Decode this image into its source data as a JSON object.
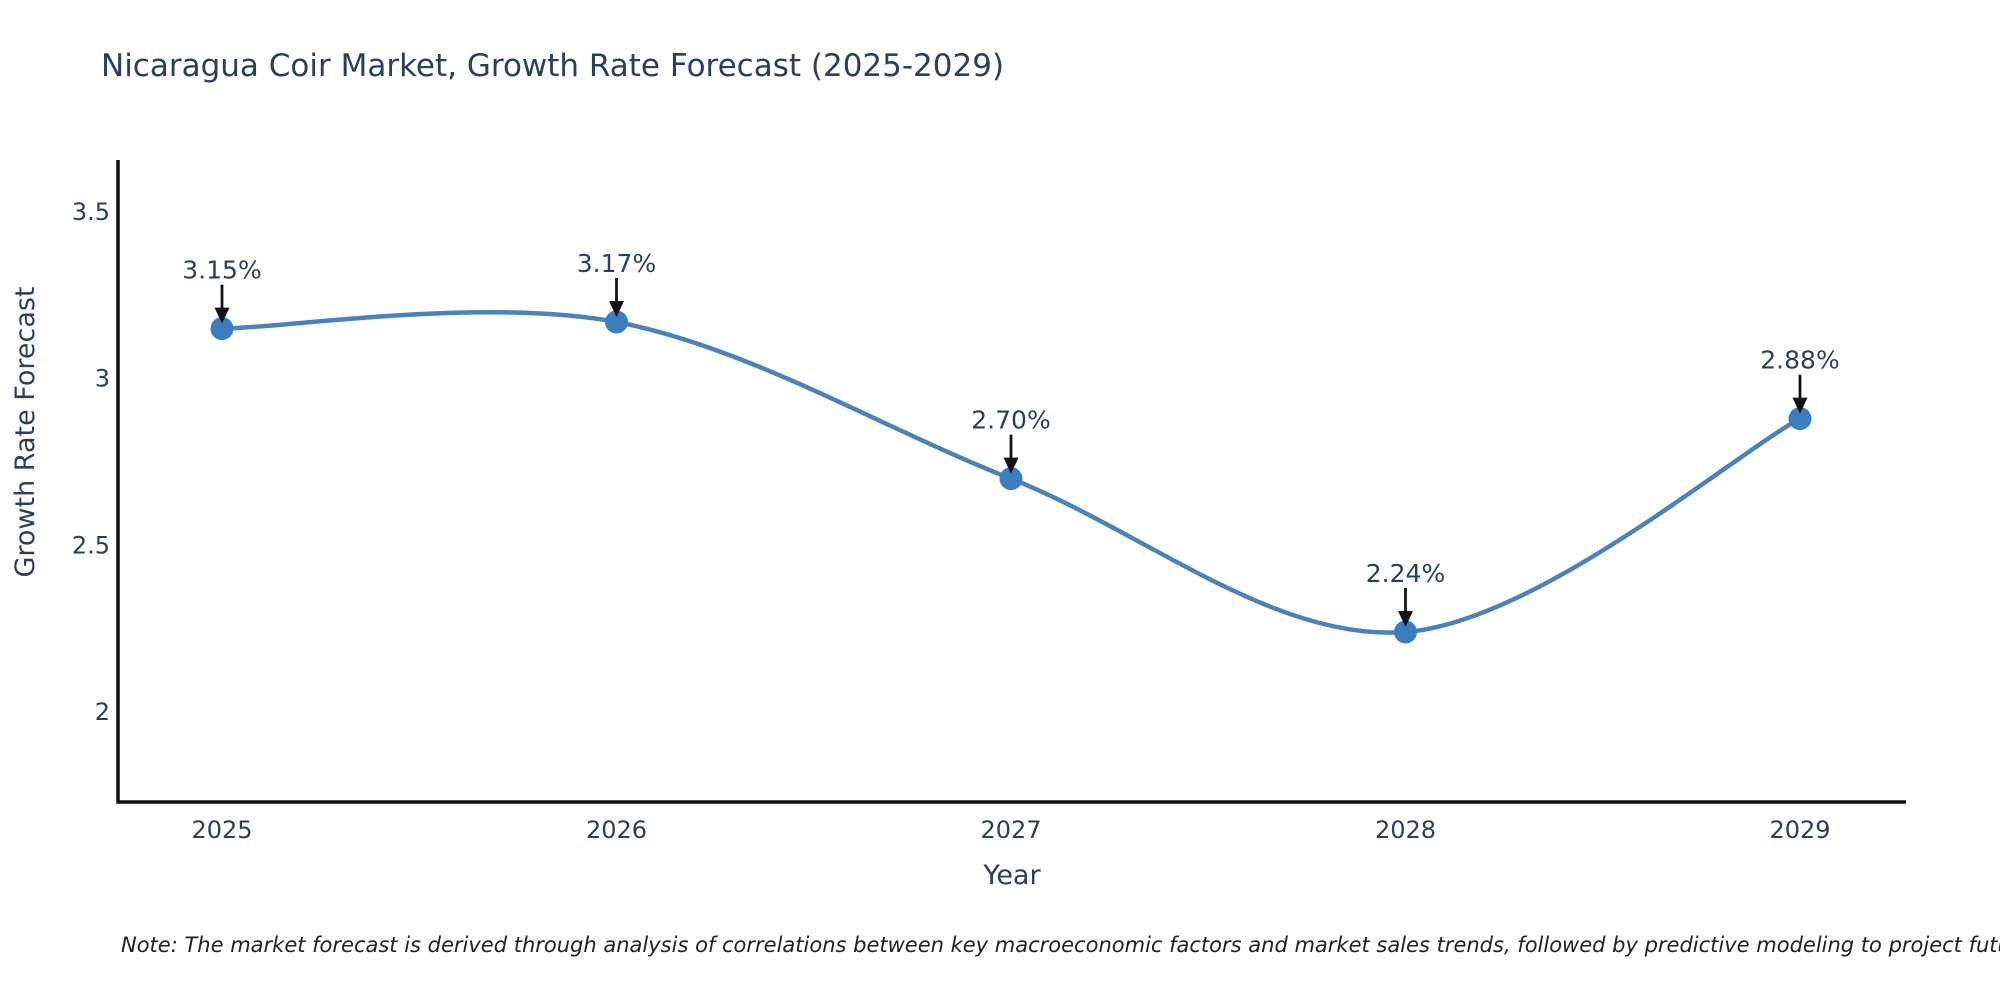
{
  "chart_data": {
    "type": "line",
    "title": "Nicaragua Coir Market, Growth Rate Forecast (2025-2029)",
    "xlabel": "Year",
    "ylabel": "Growth Rate Forecast",
    "categories": [
      "2025",
      "2026",
      "2027",
      "2028",
      "2029"
    ],
    "series": [
      {
        "name": "Growth Rate Forecast",
        "values": [
          3.15,
          3.17,
          2.7,
          2.24,
          2.88
        ],
        "point_labels": [
          "3.15%",
          "3.17%",
          "2.70%",
          "2.24%",
          "2.88%"
        ]
      }
    ],
    "y_ticks": [
      "3.5",
      "3",
      "2.5",
      "2"
    ],
    "ylim": [
      1.75,
      3.66
    ],
    "line_shape": "spline",
    "markers": true,
    "grid": false,
    "legend_position": "none",
    "colors": {
      "line": "#4b82b8",
      "marker": "#3a7ec0",
      "axis": "#111111",
      "tick_text": "#2a3f5f",
      "annotation_text": "#2a3f5f",
      "annotation_arrow": "#141414",
      "title_text": "#2a3f5f",
      "note_text": "#222222",
      "background": "#ffffff"
    }
  },
  "note": {
    "text": "Note: The market forecast is derived through analysis of correlations between key macroeconomic factors and market sales trends, followed by predictive modeling to project future sales"
  }
}
